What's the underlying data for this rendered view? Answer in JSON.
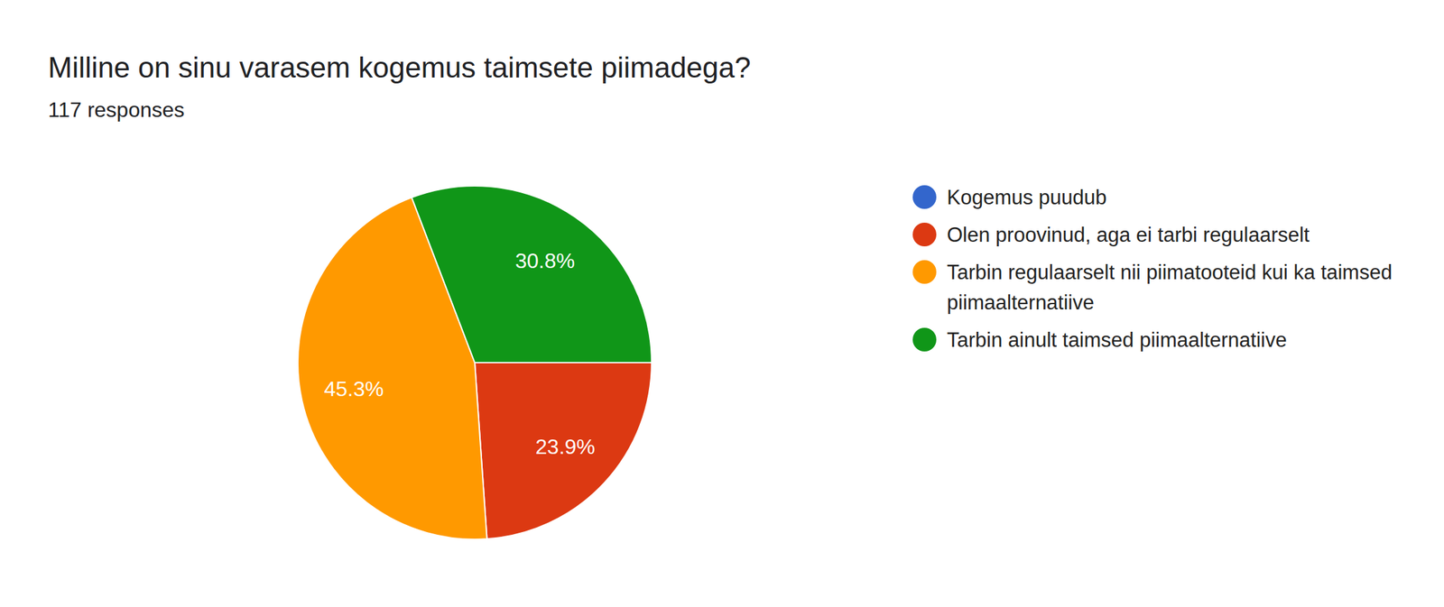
{
  "chart_data": {
    "type": "pie",
    "title": "Milline on sinu varasem kogemus taimsete piimadega?",
    "subtitle": "117 responses",
    "categories": [
      "Kogemus puudub",
      "Olen proovinud, aga ei tarbi regulaarselt",
      "Tarbin regulaarselt nii piimatooteid kui ka taimsed piimaalternatiive",
      "Tarbin ainult taimsed piimaalternatiive"
    ],
    "values": [
      0,
      23.9,
      45.3,
      30.8
    ],
    "value_labels": [
      null,
      "23.9%",
      "45.3%",
      "30.8%"
    ],
    "colors": [
      "#3366cc",
      "#dc3912",
      "#ff9900",
      "#109618"
    ],
    "data_labels": true,
    "legend": "right"
  }
}
